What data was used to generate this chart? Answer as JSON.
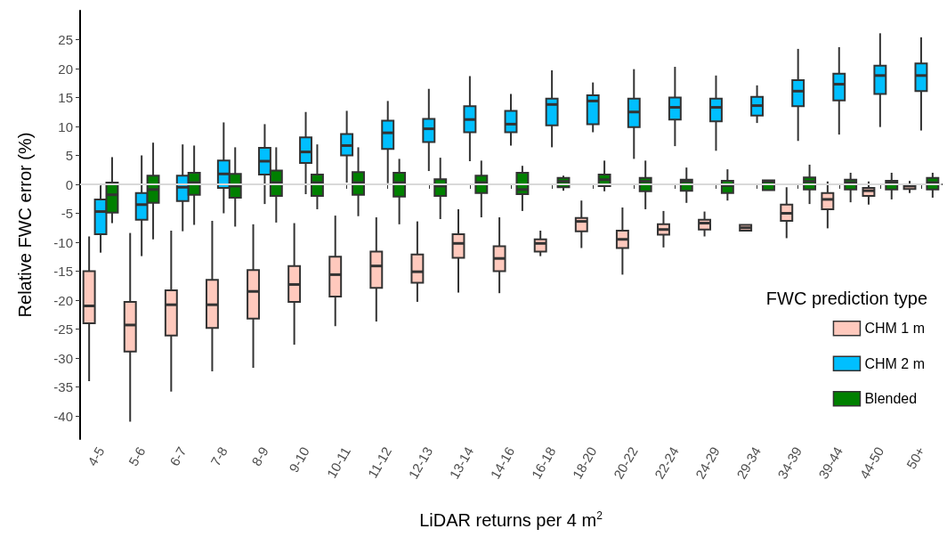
{
  "chart_data": {
    "type": "box",
    "xlabel": "LiDAR returns per 4 m$^{2}$",
    "ylabel": "Relative FWC error (%)",
    "legend_title": "FWC prediction type",
    "categories": [
      "4-5",
      "5-6",
      "6-7",
      "7-8",
      "8-9",
      "9-10",
      "10-11",
      "11-12",
      "12-13",
      "13-14",
      "14-16",
      "16-18",
      "18-20",
      "20-22",
      "22-24",
      "24-29",
      "29-34",
      "34-39",
      "39-44",
      "44-50",
      "50+"
    ],
    "ylim": [
      -44,
      30
    ],
    "yticks": [
      -40,
      -35,
      -30,
      -25,
      -20,
      -15,
      -10,
      -5,
      0,
      5,
      10,
      15,
      20,
      25
    ],
    "grid": false,
    "legend": "right",
    "ref_lines": [
      {
        "axis": "y",
        "value": 0,
        "label": null,
        "color": "#d9d9d9"
      }
    ],
    "series": [
      {
        "name": "CHM 1 m",
        "color": "#ffc9bd",
        "boxes": [
          {
            "low": -34,
            "q1": -24,
            "median": -21,
            "q3": -15,
            "high": -9
          },
          {
            "low": -41,
            "q1": -28.9,
            "median": -24.3,
            "q3": -20.3,
            "high": -8.4
          },
          {
            "low": -35.8,
            "q1": -26.1,
            "median": -20.8,
            "q3": -18.3,
            "high": -8
          },
          {
            "low": -32.3,
            "q1": -24.8,
            "median": -20.8,
            "q3": -16.5,
            "high": -6.3
          },
          {
            "low": -31.7,
            "q1": -23.2,
            "median": -18.5,
            "q3": -14.8,
            "high": -6.9
          },
          {
            "low": -27.7,
            "q1": -20.3,
            "median": -17.3,
            "q3": -14.1,
            "high": -6.7
          },
          {
            "low": -24.5,
            "q1": -19.4,
            "median": -15.6,
            "q3": -12.5,
            "high": -5.4
          },
          {
            "low": -23.7,
            "q1": -17.9,
            "median": -14.1,
            "q3": -11.6,
            "high": -5.7
          },
          {
            "low": -20.3,
            "q1": -17,
            "median": -15.1,
            "q3": -12.1,
            "high": -6.4
          },
          {
            "low": -18.7,
            "q1": -12.7,
            "median": -10.2,
            "q3": -8.6,
            "high": -4.3
          },
          {
            "low": -18.8,
            "q1": -15,
            "median": -12.8,
            "q3": -10.7,
            "high": -5.7
          },
          {
            "low": -12.4,
            "q1": -11.6,
            "median": -10.2,
            "q3": -9.5,
            "high": -8
          },
          {
            "low": -11,
            "q1": -8.1,
            "median": -6.4,
            "q3": -5.8,
            "high": -2.8
          },
          {
            "low": -15.6,
            "q1": -11,
            "median": -9.5,
            "q3": -8,
            "high": -4
          },
          {
            "low": -10.9,
            "q1": -8.7,
            "median": -7.8,
            "q3": -6.9,
            "high": -4.6
          },
          {
            "low": -9,
            "q1": -7.8,
            "median": -6.7,
            "q3": -6.1,
            "high": -4.7
          },
          {
            "low": -8,
            "q1": -8,
            "median": -7.5,
            "q3": -7,
            "high": -7
          },
          {
            "low": -9.3,
            "q1": -6.3,
            "median": -5,
            "q3": -3.5,
            "high": -0.5
          },
          {
            "low": -7.6,
            "q1": -4.3,
            "median": -2.6,
            "q3": -1.5,
            "high": 0.5
          },
          {
            "low": -3.5,
            "q1": -2,
            "median": -1.1,
            "q3": -0.6,
            "high": 0.5
          },
          {
            "low": -1.5,
            "q1": -0.8,
            "median": -0.3,
            "q3": 0,
            "high": 0.6
          }
        ]
      },
      {
        "name": "CHM 2 m",
        "color": "#00bfff",
        "boxes": [
          {
            "low": -11.8,
            "q1": -8.6,
            "median": -4.7,
            "q3": -2.6,
            "high": -0.2
          },
          {
            "low": -12.4,
            "q1": -6.1,
            "median": -3.5,
            "q3": -1.5,
            "high": 5
          },
          {
            "low": -8.1,
            "q1": -2.9,
            "median": -0.5,
            "q3": 1.5,
            "high": 6.9
          },
          {
            "low": -5,
            "q1": -0.6,
            "median": 1.8,
            "q3": 4.1,
            "high": 10.7
          },
          {
            "low": -3.4,
            "q1": 1.7,
            "median": 4,
            "q3": 6.3,
            "high": 10.4
          },
          {
            "low": -1.7,
            "q1": 3.7,
            "median": 5.6,
            "q3": 8.1,
            "high": 12.5
          },
          {
            "low": 0.3,
            "q1": 5,
            "median": 6.7,
            "q3": 8.7,
            "high": 12.7
          },
          {
            "low": 0.2,
            "q1": 6.1,
            "median": 8.9,
            "q3": 11,
            "high": 14.4
          },
          {
            "low": 2.3,
            "q1": 7.3,
            "median": 9.6,
            "q3": 11.3,
            "high": 16.5
          },
          {
            "low": 4,
            "q1": 9,
            "median": 11.2,
            "q3": 13.5,
            "high": 18.7
          },
          {
            "low": 6.7,
            "q1": 9,
            "median": 10.4,
            "q3": 12.7,
            "high": 15.6
          },
          {
            "low": 6.4,
            "q1": 10.2,
            "median": 13.8,
            "q3": 14.8,
            "high": 19.7
          },
          {
            "low": 9,
            "q1": 10.4,
            "median": 14.4,
            "q3": 15.4,
            "high": 17.6
          },
          {
            "low": 4.4,
            "q1": 9.9,
            "median": 12.5,
            "q3": 14.8,
            "high": 19.9
          },
          {
            "low": 6.6,
            "q1": 11.2,
            "median": 13.3,
            "q3": 15,
            "high": 20.3
          },
          {
            "low": 5.8,
            "q1": 10.9,
            "median": 13.3,
            "q3": 14.8,
            "high": 18.8
          },
          {
            "low": 10.6,
            "q1": 11.9,
            "median": 13.6,
            "q3": 15.1,
            "high": 17.1
          },
          {
            "low": 7.5,
            "q1": 13.5,
            "median": 16.1,
            "q3": 18,
            "high": 23.4
          },
          {
            "low": 8.6,
            "q1": 14.5,
            "median": 17.3,
            "q3": 19.1,
            "high": 23.7
          },
          {
            "low": 9.9,
            "q1": 15.6,
            "median": 18.8,
            "q3": 20.5,
            "high": 26.1
          },
          {
            "low": 9.3,
            "q1": 16.1,
            "median": 18.8,
            "q3": 20.9,
            "high": 25.4
          }
        ]
      },
      {
        "name": "Blended",
        "color": "#008000",
        "boxes": [
          {
            "low": -6.7,
            "q1": -4.9,
            "median": -1.8,
            "q3": 0.3,
            "high": 4.7
          },
          {
            "low": -9.5,
            "q1": -3.2,
            "median": -0.9,
            "q3": 1.5,
            "high": 7.2
          },
          {
            "low": -7,
            "q1": -1.8,
            "median": 0.3,
            "q3": 2,
            "high": 6.7
          },
          {
            "low": -7.3,
            "q1": -2.3,
            "median": -0.3,
            "q3": 1.8,
            "high": 6.4
          },
          {
            "low": -6.6,
            "q1": -2,
            "median": 0.3,
            "q3": 2.4,
            "high": 6.4
          },
          {
            "low": -4.3,
            "q1": -2,
            "median": 0.3,
            "q3": 1.7,
            "high": 6.9
          },
          {
            "low": -5.5,
            "q1": -1.8,
            "median": 0.3,
            "q3": 2.1,
            "high": 6.4
          },
          {
            "low": -6.9,
            "q1": -2.1,
            "median": 0.3,
            "q3": 2,
            "high": 4.4
          },
          {
            "low": -6,
            "q1": -2,
            "median": -0.3,
            "q3": 0.9,
            "high": 4.6
          },
          {
            "low": -5.7,
            "q1": -1.5,
            "median": 0.3,
            "q3": 1.5,
            "high": 4.1
          },
          {
            "low": -4.6,
            "q1": -1.7,
            "median": -0.9,
            "q3": 2,
            "high": 3.2
          },
          {
            "low": -1.1,
            "q1": -0.5,
            "median": 0.5,
            "q3": 1.1,
            "high": 1.5
          },
          {
            "low": -1.2,
            "q1": -0.3,
            "median": 0.8,
            "q3": 1.7,
            "high": 4.1
          },
          {
            "low": -4.3,
            "q1": -1.2,
            "median": 0.5,
            "q3": 1.1,
            "high": 4.1
          },
          {
            "low": -3.2,
            "q1": -1.1,
            "median": 0.5,
            "q3": 0.8,
            "high": 2.9
          },
          {
            "low": -2.8,
            "q1": -1.5,
            "median": -0.2,
            "q3": 0.6,
            "high": 2.6
          },
          {
            "low": -1,
            "q1": -1,
            "median": 0.5,
            "q3": 0.7,
            "high": 0.7
          },
          {
            "low": -3.4,
            "q1": -0.9,
            "median": 0.5,
            "q3": 1.2,
            "high": 3.4
          },
          {
            "low": -3.1,
            "q1": -0.9,
            "median": 0.3,
            "q3": 0.8,
            "high": 2
          },
          {
            "low": -2.6,
            "q1": -0.9,
            "median": 0.3,
            "q3": 0.6,
            "high": 2
          },
          {
            "low": -2.3,
            "q1": -0.9,
            "median": 0.3,
            "q3": 1.1,
            "high": 2
          }
        ]
      }
    ]
  }
}
